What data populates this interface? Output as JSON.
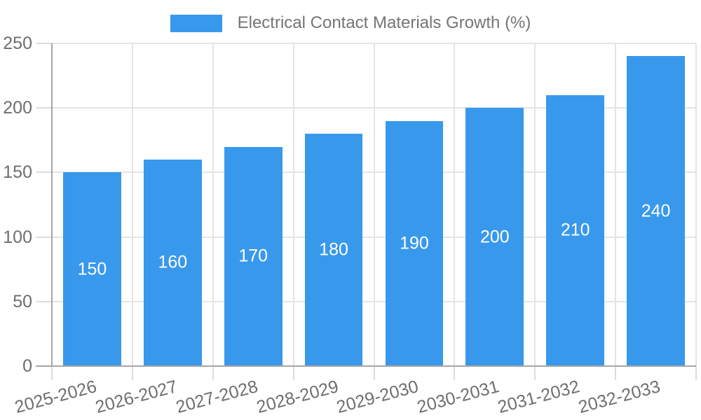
{
  "chart_data": {
    "type": "bar",
    "title": "Electrical Contact Materials Growth (%)",
    "categories": [
      "2025-2026",
      "2026-2027",
      "2027-2028",
      "2028-2029",
      "2029-2030",
      "2030-2031",
      "2031-2032",
      "2032-2033"
    ],
    "values": [
      150,
      160,
      170,
      180,
      190,
      200,
      210,
      240
    ],
    "xlabel": "",
    "ylabel": "",
    "ylim": [
      0,
      250
    ],
    "ytick_step": 50,
    "yticks": [
      0,
      50,
      100,
      150,
      200,
      250
    ],
    "grid": true,
    "legend_position": "top-center",
    "x_label_rotation_deg": -15,
    "bar_width_ratio": 0.72,
    "colors": {
      "bar": "#3899ec",
      "grid": "#e4e4e4",
      "tick": "#dcdcdc",
      "axis": "#a6a6a6",
      "tick_label": "#6e6e6e",
      "legend_label": "#757575",
      "value_label": "#ffffff",
      "background": "#ffffff"
    }
  }
}
